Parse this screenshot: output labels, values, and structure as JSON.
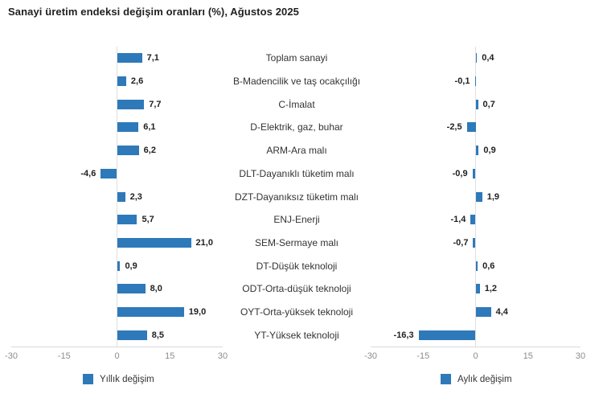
{
  "title": "Sanayi üretim endeksi değişim oranları (%), Ağustos 2025",
  "colors": {
    "bar": "#2E79B9",
    "zero_line": "#E0E0E0",
    "axis_line": "#D9D9D9",
    "tick_text": "#8C8C8C",
    "value_text": "#1F1F1F",
    "category_text": "#333333",
    "title_text": "#1F1F1F"
  },
  "chart_data": {
    "type": "bar",
    "orientation": "horizontal",
    "layout": "dual-panel-shared-categories",
    "title": "Sanayi üretim endeksi değişim oranları (%), Ağustos 2025",
    "categories": [
      "Toplam sanayi",
      "B-Madencilik ve taş ocakçılığı",
      "C-İmalat",
      "D-Elektrik, gaz, buhar",
      "ARM-Ara malı",
      "DLT-Dayanıklı tüketim malı",
      "DZT-Dayanıksız tüketim malı",
      "ENJ-Enerji",
      "SEM-Sermaye malı",
      "DT-Düşük teknoloji",
      "ODT-Orta-düşük teknoloji",
      "OYT-Orta-yüksek teknoloji",
      "YT-Yüksek teknoloji"
    ],
    "series": [
      {
        "name": "Yıllık değişim",
        "values": [
          7.1,
          2.6,
          7.7,
          6.1,
          6.2,
          -4.6,
          2.3,
          5.7,
          21.0,
          0.9,
          8.0,
          19.0,
          8.5
        ],
        "labels": [
          "7,1",
          "2,6",
          "7,7",
          "6,1",
          "6,2",
          "-4,6",
          "2,3",
          "5,7",
          "21,0",
          "0,9",
          "8,0",
          "19,0",
          "8,5"
        ]
      },
      {
        "name": "Aylık değişim",
        "values": [
          0.4,
          -0.1,
          0.7,
          -2.5,
          0.9,
          -0.9,
          1.9,
          -1.4,
          -0.7,
          0.6,
          1.2,
          4.4,
          -16.3
        ],
        "labels": [
          "0,4",
          "-0,1",
          "0,7",
          "-2,5",
          "0,9",
          "-0,9",
          "1,9",
          "-1,4",
          "-0,7",
          "0,6",
          "1,2",
          "4,4",
          "-16,3"
        ]
      }
    ],
    "xlim": [
      -30,
      30
    ],
    "ticks": [
      -30,
      -15,
      0,
      15,
      30
    ],
    "tick_labels": [
      "-30",
      "-15",
      "0",
      "15",
      "30"
    ],
    "grid": "zero-line-only",
    "legend_position": "bottom"
  }
}
